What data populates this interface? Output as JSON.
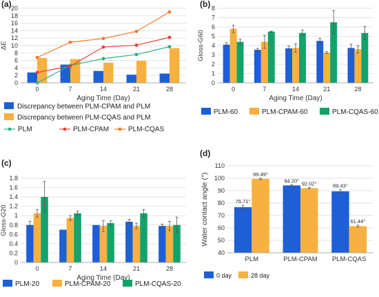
{
  "colors": {
    "blue": "#1f5fd6",
    "orange": "#f7b140",
    "green": "#12a36b",
    "plm_line": "#2ab27e",
    "cpam_line": "#e8413a",
    "cqas_line": "#f07a2a",
    "grid": "#d9d9d9",
    "error": "#555555"
  },
  "chart_data": [
    {
      "panel": "(a)",
      "type": "bar",
      "categories": [
        "0",
        "7",
        "14",
        "21",
        "28"
      ],
      "xlabel": "Aging Time (Day)",
      "ylabel": "ΔE",
      "ylim": [
        0,
        20
      ],
      "yticks": [
        "0",
        "2",
        "4",
        "6",
        "8",
        "10",
        "12",
        "14",
        "16",
        "18",
        "20"
      ],
      "grid": true,
      "bars": [
        {
          "name": "Discrepancy between PLM-CPAM and PLM",
          "color": "#1f5fd6",
          "values": [
            2.8,
            4.9,
            3.2,
            2.2,
            2.5
          ]
        },
        {
          "name": "Discrepancy between PLM-CQAS and PLM",
          "color": "#f7b140",
          "values": [
            6.7,
            6.4,
            5.4,
            5.9,
            9.3
          ]
        }
      ],
      "lines": [
        {
          "name": "PLM",
          "color": "#2ab27e",
          "values": [
            0,
            4.7,
            6.5,
            7.6,
            9.7
          ]
        },
        {
          "name": "PLM-CPAM",
          "color": "#e8413a",
          "values": [
            2.8,
            4.5,
            9.6,
            10.1,
            12.2
          ]
        },
        {
          "name": "PLM-CQAS",
          "color": "#f07a2a",
          "values": [
            6.8,
            10.9,
            11.9,
            13.8,
            19.0
          ]
        }
      ],
      "legend": "bottom"
    },
    {
      "panel": "(b)",
      "type": "bar",
      "categories": [
        "0",
        "7",
        "14",
        "21",
        "28"
      ],
      "xlabel": "Aging Time (Day)",
      "ylabel": "Gloss-G60",
      "ylim": [
        0,
        8
      ],
      "yticks": [
        "0",
        "1",
        "2",
        "3",
        "4",
        "5",
        "6",
        "7",
        "8"
      ],
      "grid": true,
      "series": [
        {
          "name": "PLM-60",
          "color": "#1f5fd6",
          "values": [
            4.1,
            3.55,
            3.7,
            4.5,
            3.75
          ],
          "errors": [
            0.2,
            0.15,
            0.25,
            0.3,
            0.4
          ]
        },
        {
          "name": "PLM-CPAM-60",
          "color": "#f7b140",
          "values": [
            5.8,
            4.4,
            3.75,
            3.25,
            3.6
          ],
          "errors": [
            0.4,
            0.7,
            0.45,
            0.1,
            0.4
          ]
        },
        {
          "name": "PLM-CQAS-60",
          "color": "#12a36b",
          "values": [
            4.4,
            5.5,
            5.35,
            6.5,
            5.35
          ],
          "errors": [
            0.3,
            0.05,
            0.3,
            1.25,
            0.7
          ]
        }
      ],
      "legend": "bottom"
    },
    {
      "panel": "(c)",
      "type": "bar",
      "categories": [
        "0",
        "7",
        "14",
        "21",
        "28"
      ],
      "xlabel": "Aging Time (Day)",
      "ylabel": "Gloss-G20",
      "ylim": [
        0,
        1.8
      ],
      "yticks": [
        "0",
        "0.2",
        "0.4",
        "0.6",
        "0.8",
        "1",
        "1.2",
        "1.4",
        "1.6",
        "1.8"
      ],
      "grid": true,
      "series": [
        {
          "name": "PLM-20",
          "color": "#1f5fd6",
          "values": [
            0.8,
            0.7,
            0.8,
            0.87,
            0.78
          ],
          "errors": [
            0.08,
            0,
            0,
            0.05,
            0.04
          ]
        },
        {
          "name": "PLM-CPAM-20",
          "color": "#f7b140",
          "values": [
            1.05,
            0.95,
            0.78,
            0.78,
            0.78
          ],
          "errors": [
            0.08,
            0.05,
            0.12,
            0.06,
            0.1
          ]
        },
        {
          "name": "PLM-CQAS-20",
          "color": "#12a36b",
          "values": [
            1.4,
            1.05,
            0.84,
            1.05,
            0.8
          ],
          "errors": [
            0.33,
            0.05,
            0.05,
            0.08,
            0.17
          ]
        }
      ],
      "legend": "bottom"
    },
    {
      "panel": "(d)",
      "type": "bar",
      "categories": [
        "PLM",
        "PLM-CPAM",
        "PLM-CQAS"
      ],
      "xlabel": "",
      "ylabel": "Water contact angle (°)",
      "ylim": [
        40,
        110
      ],
      "yticks": [
        "40",
        "50",
        "60",
        "70",
        "80",
        "90",
        "100",
        "110"
      ],
      "grid": true,
      "series": [
        {
          "name": "0 day",
          "color": "#1f5fd6",
          "values": [
            76.71,
            94.2,
            89.43
          ],
          "errors": [
            1.5,
            0.5,
            1.5
          ],
          "labels": [
            "76.71°",
            "94.20°",
            "89.43°"
          ]
        },
        {
          "name": "28 day",
          "color": "#f7b140",
          "values": [
            99.49,
            92.02,
            61.44
          ],
          "errors": [
            0.5,
            0.5,
            0.8
          ],
          "labels": [
            "99.49°",
            "92.02°",
            "61.44°"
          ]
        }
      ],
      "legend": "bottom-left"
    }
  ]
}
